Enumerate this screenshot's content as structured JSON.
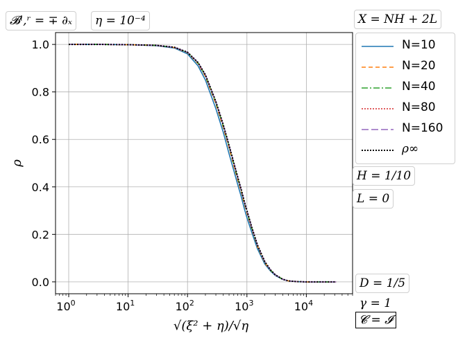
{
  "chart_data": {
    "type": "line",
    "title": "",
    "xlabel": "√(ξ² + η)/√η",
    "ylabel": "ρ",
    "xscale": "log",
    "xlim": [
      0.6,
      60000
    ],
    "ylim": [
      -0.05,
      1.05
    ],
    "xticks": [
      {
        "value": 1,
        "label_base": "10",
        "label_exp": "0"
      },
      {
        "value": 10,
        "label_base": "10",
        "label_exp": "1"
      },
      {
        "value": 100,
        "label_base": "10",
        "label_exp": "2"
      },
      {
        "value": 1000,
        "label_base": "10",
        "label_exp": "3"
      },
      {
        "value": 10000,
        "label_base": "10",
        "label_exp": "4"
      }
    ],
    "yticks": [
      "0.0",
      "0.2",
      "0.4",
      "0.6",
      "0.8",
      "1.0"
    ],
    "grid": true,
    "legend_position": "right",
    "x": [
      1,
      3,
      10,
      30,
      60,
      100,
      150,
      200,
      300,
      400,
      500,
      600,
      700,
      800,
      900,
      1000,
      1200,
      1500,
      2000,
      2500,
      3000,
      4000,
      5000,
      7000,
      10000,
      31623
    ],
    "series": [
      {
        "name": "N=10",
        "color": "#1f77b4",
        "dash": "",
        "width": 1.6,
        "values": [
          1.0,
          1.0,
          0.999,
          0.995,
          0.985,
          0.96,
          0.91,
          0.85,
          0.73,
          0.63,
          0.54,
          0.47,
          0.41,
          0.36,
          0.31,
          0.27,
          0.21,
          0.14,
          0.075,
          0.045,
          0.027,
          0.01,
          0.004,
          0.001,
          0.0,
          0.0
        ]
      },
      {
        "name": "N=20",
        "color": "#ff7f0e",
        "dash": "6,4",
        "width": 1.6,
        "values": [
          1.0,
          1.0,
          0.999,
          0.996,
          0.987,
          0.965,
          0.92,
          0.865,
          0.75,
          0.65,
          0.565,
          0.49,
          0.43,
          0.38,
          0.33,
          0.29,
          0.225,
          0.15,
          0.08,
          0.048,
          0.029,
          0.011,
          0.004,
          0.001,
          0.0,
          0.0
        ]
      },
      {
        "name": "N=40",
        "color": "#2ca02c",
        "dash": "9,3,2,3",
        "width": 1.6,
        "values": [
          1.0,
          1.0,
          0.999,
          0.996,
          0.988,
          0.966,
          0.922,
          0.868,
          0.755,
          0.656,
          0.57,
          0.497,
          0.436,
          0.385,
          0.335,
          0.295,
          0.228,
          0.152,
          0.082,
          0.049,
          0.03,
          0.011,
          0.004,
          0.001,
          0.0,
          0.0
        ]
      },
      {
        "name": "N=80",
        "color": "#d62728",
        "dash": "2,2",
        "width": 1.6,
        "values": [
          1.0,
          1.0,
          0.999,
          0.996,
          0.988,
          0.967,
          0.923,
          0.87,
          0.758,
          0.66,
          0.573,
          0.5,
          0.44,
          0.388,
          0.338,
          0.298,
          0.23,
          0.154,
          0.083,
          0.05,
          0.03,
          0.011,
          0.004,
          0.001,
          0.0,
          0.0
        ]
      },
      {
        "name": "N=160",
        "color": "#9467bd",
        "dash": "10,4",
        "width": 1.6,
        "values": [
          1.0,
          1.0,
          0.999,
          0.996,
          0.988,
          0.967,
          0.924,
          0.871,
          0.759,
          0.661,
          0.575,
          0.502,
          0.441,
          0.389,
          0.339,
          0.299,
          0.231,
          0.155,
          0.084,
          0.05,
          0.03,
          0.011,
          0.004,
          0.001,
          0.0,
          0.0
        ]
      },
      {
        "name": "ρ∞",
        "color": "#000000",
        "dash": "2,2",
        "width": 2,
        "values": [
          1.0,
          1.0,
          0.999,
          0.996,
          0.988,
          0.967,
          0.924,
          0.872,
          0.76,
          0.662,
          0.576,
          0.503,
          0.442,
          0.39,
          0.34,
          0.3,
          0.232,
          0.156,
          0.085,
          0.05,
          0.03,
          0.011,
          0.004,
          0.001,
          0.0,
          0.0
        ]
      }
    ]
  },
  "annotations": {
    "boundary": "𝓑ˡ,ʳ = ∓ ∂ₓ",
    "eta": "η = 10⁻⁴",
    "x_def": "X = NH + 2L",
    "h": "H = 1/10",
    "l": "L = 0",
    "d": "D = 1/5",
    "gamma": "γ = 1",
    "c": "𝓒 = 𝓘"
  }
}
